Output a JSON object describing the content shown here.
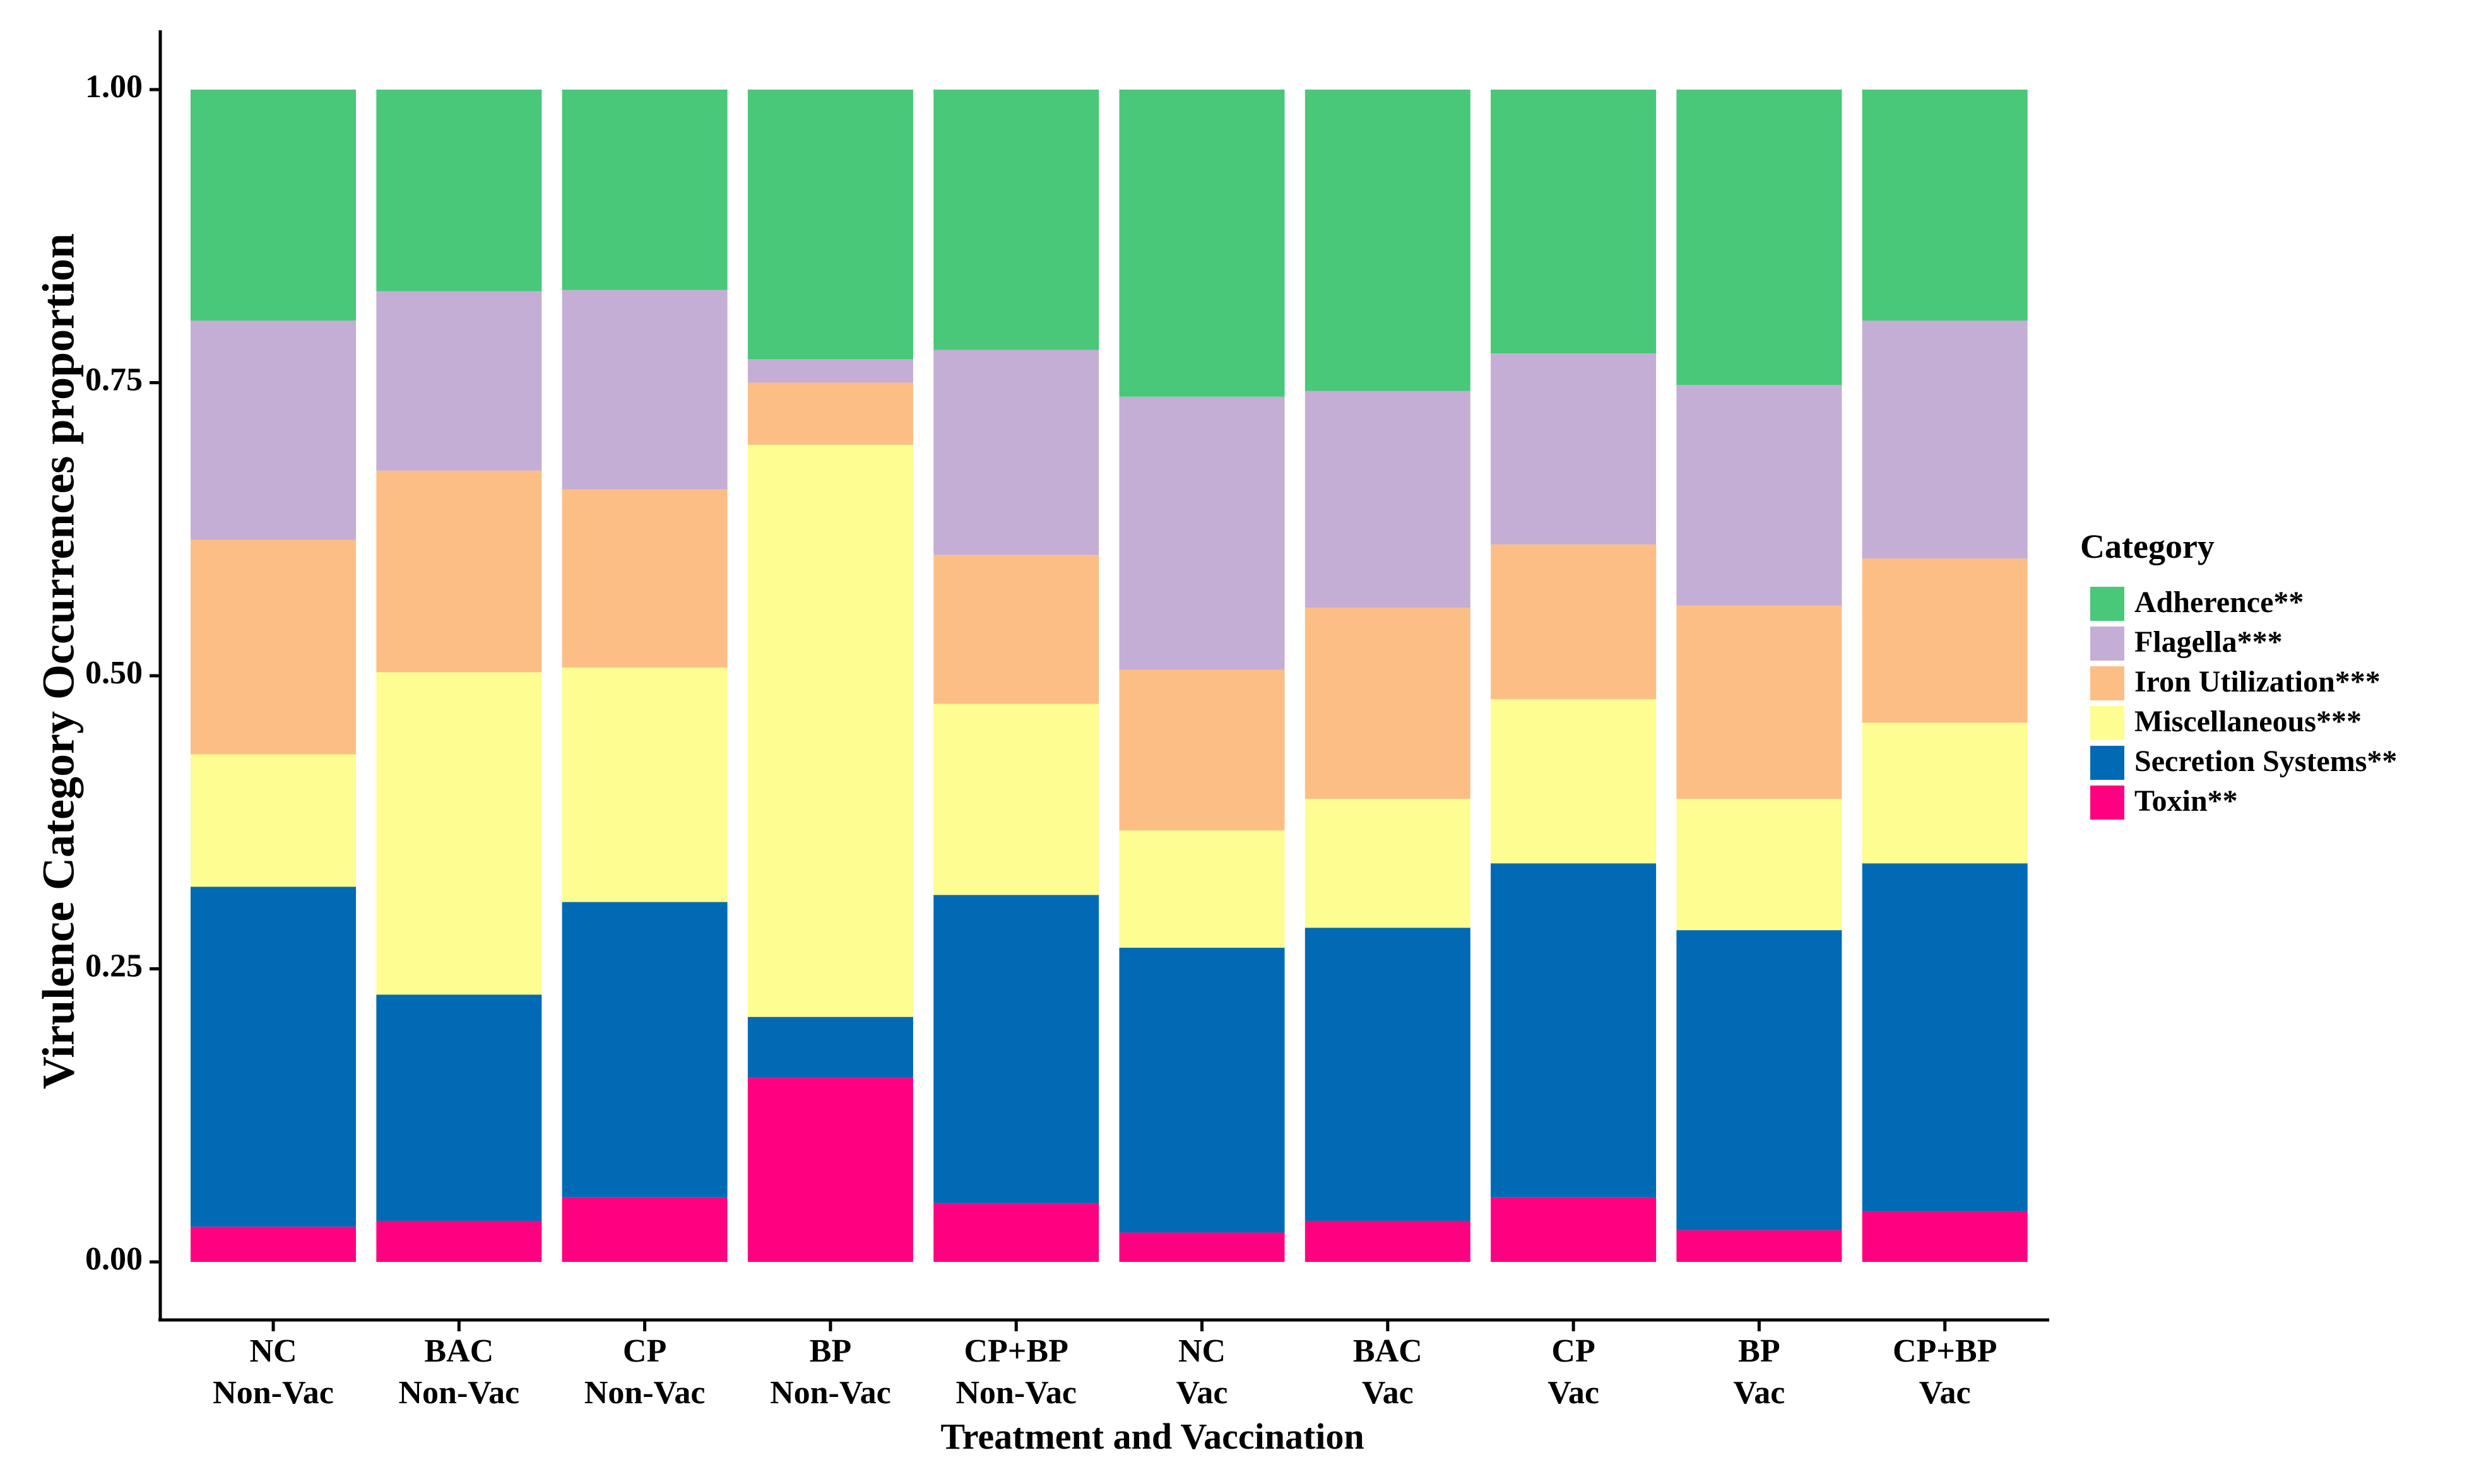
{
  "chart_data": {
    "type": "bar",
    "stacked": true,
    "title": "",
    "xlabel": "Treatment and Vaccination",
    "ylabel": "Virulence Category Occurrences proportion",
    "ylim": [
      0,
      1
    ],
    "yticks": [
      "0.00",
      "0.25",
      "0.50",
      "0.75",
      "1.00"
    ],
    "ytick_values": [
      0,
      0.25,
      0.5,
      0.75,
      1.0
    ],
    "grid": false,
    "legend_position": "right",
    "legend_title": "Category",
    "categories": [
      {
        "top": "NC",
        "bottom": "Non-Vac"
      },
      {
        "top": "BAC",
        "bottom": "Non-Vac"
      },
      {
        "top": "CP",
        "bottom": "Non-Vac"
      },
      {
        "top": "BP",
        "bottom": "Non-Vac"
      },
      {
        "top": "CP+BP",
        "bottom": "Non-Vac"
      },
      {
        "top": "NC",
        "bottom": "Vac"
      },
      {
        "top": "BAC",
        "bottom": "Vac"
      },
      {
        "top": "CP",
        "bottom": "Vac"
      },
      {
        "top": "BP",
        "bottom": "Vac"
      },
      {
        "top": "CP+BP",
        "bottom": "Vac"
      }
    ],
    "series": [
      {
        "name": "Toxin**",
        "color": "#FF0080",
        "values": [
          0.03,
          0.035,
          0.055,
          0.157,
          0.05,
          0.025,
          0.035,
          0.055,
          0.027,
          0.043
        ]
      },
      {
        "name": "Secretion Systems**",
        "color": "#006AB4",
        "values": [
          0.29,
          0.193,
          0.252,
          0.052,
          0.263,
          0.243,
          0.25,
          0.285,
          0.256,
          0.297
        ]
      },
      {
        "name": "Miscellaneous***",
        "color": "#FDFD91",
        "values": [
          0.113,
          0.275,
          0.2,
          0.488,
          0.163,
          0.1,
          0.11,
          0.14,
          0.112,
          0.12
        ]
      },
      {
        "name": "Iron Utilization***",
        "color": "#FDBE85",
        "values": [
          0.183,
          0.172,
          0.152,
          0.053,
          0.127,
          0.137,
          0.163,
          0.132,
          0.165,
          0.14
        ]
      },
      {
        "name": "Flagella***",
        "color": "#C4AED6",
        "values": [
          0.187,
          0.153,
          0.17,
          0.02,
          0.175,
          0.233,
          0.185,
          0.163,
          0.188,
          0.203
        ]
      },
      {
        "name": "Adherence**",
        "color": "#48C878",
        "values": [
          0.197,
          0.172,
          0.171,
          0.23,
          0.222,
          0.262,
          0.257,
          0.225,
          0.252,
          0.197
        ]
      }
    ]
  }
}
